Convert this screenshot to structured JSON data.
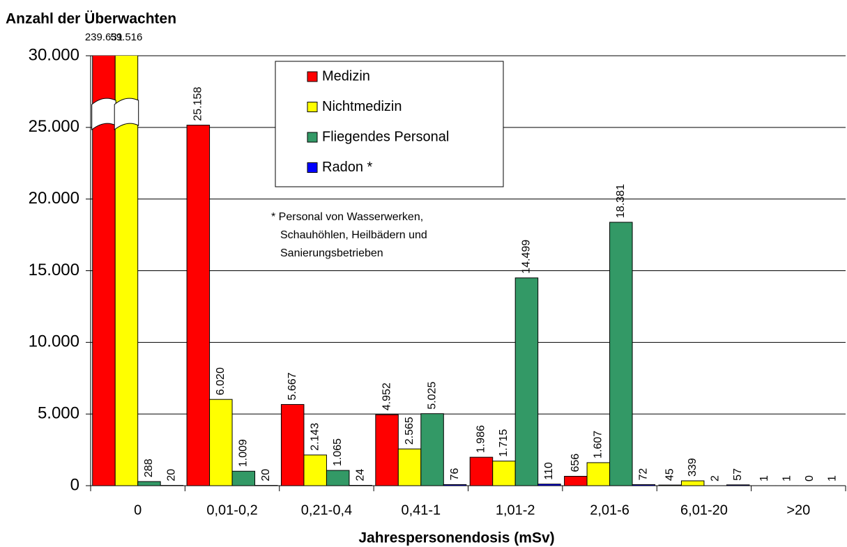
{
  "chart_data": {
    "type": "bar",
    "y_label": "Anzahl der Überwachten",
    "x_label": "Jahrespersonendosis (mSv)",
    "note": [
      "* Personal von Wasserwerken,",
      "Schauhöhlen, Heilbädern und",
      "Sanierungsbetrieben"
    ],
    "categories": [
      "0",
      "0,01-0,2",
      "0,21-0,4",
      "0,41-1",
      "1,01-2",
      "2,01-6",
      "6,01-20",
      ">20"
    ],
    "series": [
      {
        "name": "Medizin",
        "color": "#ff0000",
        "values": [
          239631,
          25158,
          5667,
          4952,
          1986,
          656,
          45,
          1
        ],
        "value_labels": [
          "239.631",
          "25.158",
          "5.667",
          "4.952",
          "1.986",
          "656",
          "45",
          "1"
        ]
      },
      {
        "name": "Nichtmedizin",
        "color": "#ffff00",
        "values": [
          59516,
          6020,
          2143,
          2565,
          1715,
          1607,
          339,
          1
        ],
        "value_labels": [
          "59.516",
          "6.020",
          "2.143",
          "2.565",
          "1.715",
          "1.607",
          "339",
          "1"
        ]
      },
      {
        "name": "Fliegendes Personal",
        "color": "#339966",
        "values": [
          288,
          1009,
          1065,
          5025,
          14499,
          18381,
          2,
          0
        ],
        "value_labels": [
          "288",
          "1.009",
          "1.065",
          "5.025",
          "14.499",
          "18.381",
          "2",
          "0"
        ]
      },
      {
        "name": "Radon *",
        "color": "#0000ff",
        "values": [
          20,
          20,
          24,
          76,
          110,
          72,
          57,
          1
        ],
        "value_labels": [
          "20",
          "20",
          "24",
          "76",
          "110",
          "72",
          "57",
          "1"
        ]
      }
    ],
    "ylim": [
      0,
      30000
    ],
    "yticks": [
      {
        "value": 0,
        "label": "0"
      },
      {
        "value": 5000,
        "label": "5.000"
      },
      {
        "value": 10000,
        "label": "10.000"
      },
      {
        "value": 15000,
        "label": "15.000"
      },
      {
        "value": 20000,
        "label": "20.000"
      },
      {
        "value": 25000,
        "label": "25.000"
      },
      {
        "value": 30000,
        "label": "30.000"
      }
    ],
    "grid": true,
    "legend": "top"
  }
}
